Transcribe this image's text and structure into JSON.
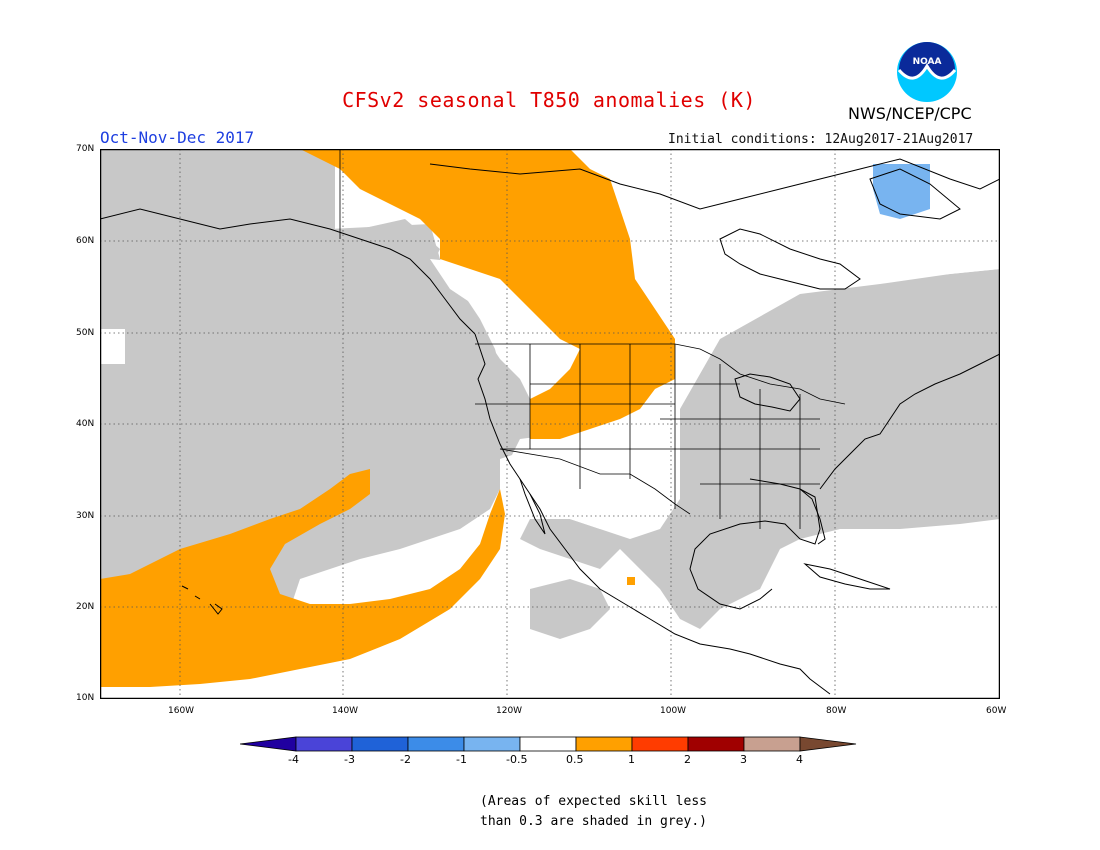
{
  "header": {
    "title": "CFSv2 seasonal T850 anomalies (K)",
    "period": "Oct-Nov-Dec 2017",
    "initial_conditions": "Initial conditions: 12Aug2017-21Aug2017",
    "agency": "NWS/NCEP/CPC",
    "logo_text": "NOAA",
    "logo_icon": "noaa-logo"
  },
  "map": {
    "lon_range": [
      -172,
      -60
    ],
    "lat_range": [
      10,
      70
    ],
    "lat_labels": [
      "70N",
      "60N",
      "50N",
      "40N",
      "30N",
      "20N",
      "10N"
    ],
    "lon_labels": [
      "160W",
      "140W",
      "120W",
      "100W",
      "80W",
      "60W"
    ],
    "colors": {
      "low_skill_grey": "#c8c8c8",
      "warm_0_5_to_1": "#ffa000",
      "cool_-1_to_-0_5": "#78b4f0",
      "coast": "#000000"
    }
  },
  "colorbar": {
    "labels": [
      "-4",
      "-3",
      "-2",
      "-1",
      "-0.5",
      "0.5",
      "1",
      "2",
      "3",
      "4"
    ],
    "colors": [
      "#2000a0",
      "#4a44d8",
      "#1f62d8",
      "#3c8ce8",
      "#78b4f0",
      "#ffffff",
      "#ffa000",
      "#ff3c00",
      "#a00000",
      "#c8a090",
      "#784830"
    ]
  },
  "note": {
    "line1": "(Areas of expected skill less",
    "line2": "than 0.3 are shaded in grey.)"
  }
}
